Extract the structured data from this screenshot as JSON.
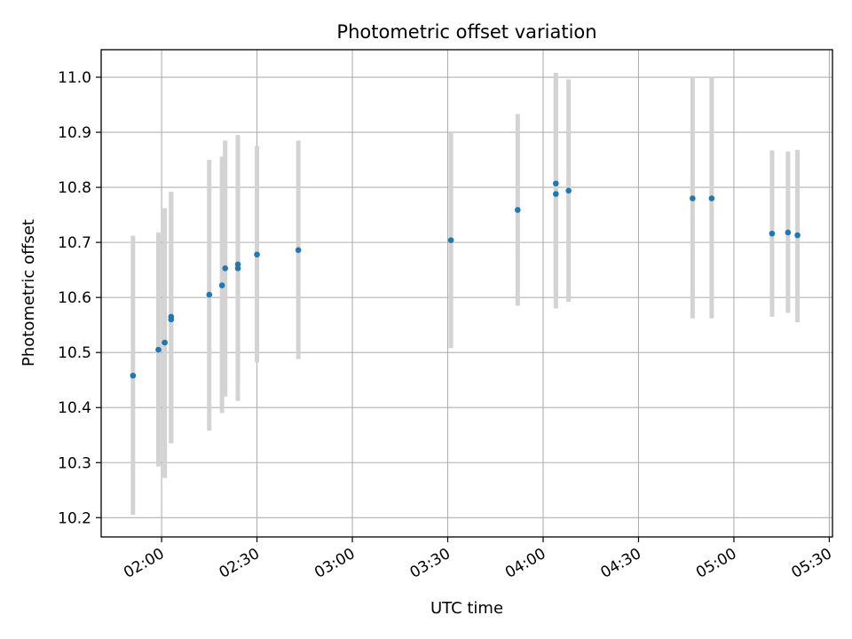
{
  "chart_data": {
    "type": "scatter",
    "title": "Photometric offset variation",
    "xlabel": "UTC time",
    "ylabel": "Photometric offset",
    "xlim": [
      "01:41",
      "05:31"
    ],
    "ylim": [
      10.165,
      11.05
    ],
    "x_ticks": [
      "02:00",
      "02:30",
      "03:00",
      "03:30",
      "04:00",
      "04:30",
      "05:00",
      "05:30"
    ],
    "y_ticks": [
      "10.2",
      "10.3",
      "10.4",
      "10.5",
      "10.6",
      "10.7",
      "10.8",
      "10.9",
      "11.0"
    ],
    "grid": true,
    "colors": {
      "point": "#1f77b4",
      "error_bar": "#d3d3d3",
      "grid": "#b0b0b0"
    },
    "points": [
      {
        "x": "01:51",
        "y": 10.458,
        "ylo": 10.205,
        "yhi": 10.712
      },
      {
        "x": "01:59",
        "y": 10.505,
        "ylo": 10.293,
        "yhi": 10.718
      },
      {
        "x": "02:01",
        "y": 10.518,
        "ylo": 10.272,
        "yhi": 10.762
      },
      {
        "x": "02:03",
        "y": 10.56,
        "ylo": 10.335,
        "yhi": 10.792
      },
      {
        "x": "02:03",
        "y": 10.565,
        "ylo": 10.335,
        "yhi": 10.792
      },
      {
        "x": "02:15",
        "y": 10.605,
        "ylo": 10.358,
        "yhi": 10.85
      },
      {
        "x": "02:19",
        "y": 10.622,
        "ylo": 10.39,
        "yhi": 10.856
      },
      {
        "x": "02:20",
        "y": 10.653,
        "ylo": 10.42,
        "yhi": 10.885
      },
      {
        "x": "02:24",
        "y": 10.653,
        "ylo": 10.412,
        "yhi": 10.895
      },
      {
        "x": "02:24",
        "y": 10.66,
        "ylo": 10.442,
        "yhi": 10.877
      },
      {
        "x": "02:30",
        "y": 10.678,
        "ylo": 10.482,
        "yhi": 10.875
      },
      {
        "x": "02:43",
        "y": 10.686,
        "ylo": 10.488,
        "yhi": 10.885
      },
      {
        "x": "03:31",
        "y": 10.704,
        "ylo": 10.508,
        "yhi": 10.9
      },
      {
        "x": "03:52",
        "y": 10.759,
        "ylo": 10.585,
        "yhi": 10.933
      },
      {
        "x": "04:04",
        "y": 10.807,
        "ylo": 10.605,
        "yhi": 11.008
      },
      {
        "x": "04:04",
        "y": 10.788,
        "ylo": 10.58,
        "yhi": 10.995
      },
      {
        "x": "04:08",
        "y": 10.794,
        "ylo": 10.592,
        "yhi": 10.996
      },
      {
        "x": "04:47",
        "y": 10.78,
        "ylo": 10.562,
        "yhi": 11.0
      },
      {
        "x": "04:53",
        "y": 10.78,
        "ylo": 10.562,
        "yhi": 11.0
      },
      {
        "x": "05:12",
        "y": 10.716,
        "ylo": 10.565,
        "yhi": 10.867
      },
      {
        "x": "05:17",
        "y": 10.718,
        "ylo": 10.572,
        "yhi": 10.865
      },
      {
        "x": "05:20",
        "y": 10.713,
        "ylo": 10.555,
        "yhi": 10.868
      }
    ]
  }
}
